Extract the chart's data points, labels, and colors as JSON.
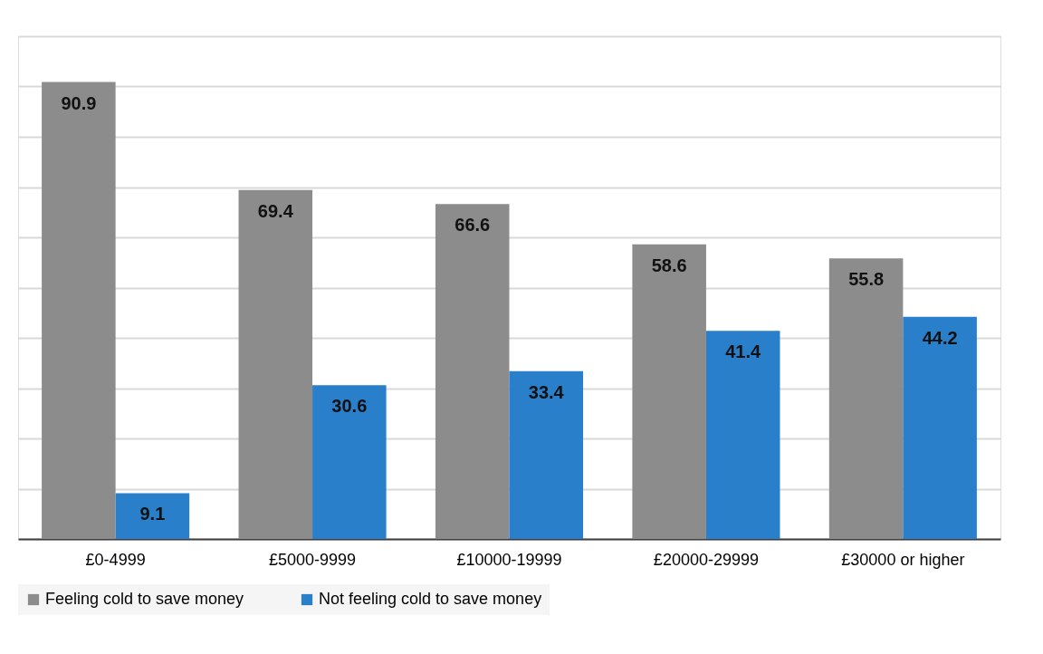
{
  "chart_data": {
    "type": "bar",
    "categories": [
      "£0-4999",
      "£5000-9999",
      "£10000-19999",
      "£20000-29999",
      "£30000 or higher"
    ],
    "series": [
      {
        "name": "Feeling cold to save money",
        "color": "#8c8c8c",
        "values": [
          90.9,
          69.4,
          66.6,
          58.6,
          55.8
        ]
      },
      {
        "name": "Not feeling cold to save money",
        "color": "#2a7fcb",
        "values": [
          9.1,
          30.6,
          33.4,
          41.4,
          44.2
        ]
      }
    ],
    "ylim": [
      0,
      100
    ],
    "yticks": [
      {
        "value": 0,
        "label": null
      },
      {
        "value": 10,
        "label": null
      },
      {
        "value": 20,
        "label": null
      },
      {
        "value": 30,
        "label": null
      },
      {
        "value": 40,
        "label": null
      },
      {
        "value": 50,
        "label": null
      },
      {
        "value": 60,
        "label": null
      },
      {
        "value": 70,
        "label": null
      },
      {
        "value": 80,
        "label": null
      },
      {
        "value": 90,
        "label": null
      },
      {
        "value": 100,
        "label": null
      }
    ],
    "tick_labels": "x",
    "grid": "y",
    "legend": "bottom",
    "data_labels": true
  }
}
